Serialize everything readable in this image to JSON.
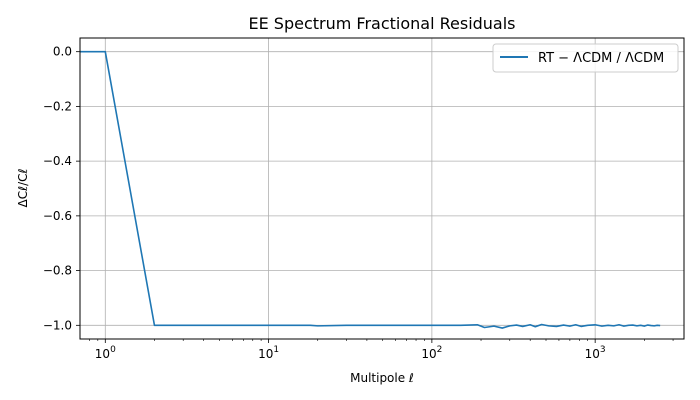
{
  "chart_data": {
    "type": "line",
    "title": "EE Spectrum Fractional Residuals",
    "xlabel": "Multipole ℓ",
    "ylabel": "ΔCℓ/Cℓ",
    "xscale": "log",
    "xlim": [
      0.7,
      3500
    ],
    "ylim": [
      -1.05,
      0.05
    ],
    "grid": true,
    "legend_position": "top-right",
    "x_ticks": [
      {
        "value": 1,
        "base": "10",
        "exp": "0"
      },
      {
        "value": 10,
        "base": "10",
        "exp": "1"
      },
      {
        "value": 100,
        "base": "10",
        "exp": "2"
      },
      {
        "value": 1000,
        "base": "10",
        "exp": "3"
      }
    ],
    "y_ticks": [
      {
        "value": 0.0,
        "label": "0.0"
      },
      {
        "value": -0.2,
        "label": "−0.2"
      },
      {
        "value": -0.4,
        "label": "−0.4"
      },
      {
        "value": -0.6,
        "label": "−0.6"
      },
      {
        "value": -0.8,
        "label": "−0.8"
      },
      {
        "value": -1.0,
        "label": "−1.0"
      }
    ],
    "series": [
      {
        "name": "RT − ΛCDM / ΛCDM",
        "color": "#1f77b4",
        "x": [
          0.7,
          1,
          2,
          3,
          5,
          10,
          18,
          20,
          30,
          50,
          100,
          150,
          190,
          210,
          240,
          270,
          300,
          330,
          360,
          400,
          430,
          470,
          520,
          580,
          640,
          700,
          760,
          820,
          900,
          1000,
          1100,
          1200,
          1300,
          1400,
          1500,
          1600,
          1700,
          1800,
          1900,
          2000,
          2100,
          2200,
          2300,
          2400,
          2500
        ],
        "y": [
          0,
          0,
          -1.0,
          -1.0,
          -1.0,
          -1.0,
          -1.0,
          -1.002,
          -1.0,
          -1.0,
          -1.0,
          -1.0,
          -0.998,
          -1.008,
          -1.003,
          -1.01,
          -1.002,
          -0.999,
          -1.004,
          -0.998,
          -1.005,
          -0.997,
          -1.002,
          -1.004,
          -0.999,
          -1.003,
          -0.998,
          -1.004,
          -1.0,
          -0.998,
          -1.003,
          -1.0,
          -1.002,
          -0.998,
          -1.003,
          -1.0,
          -0.999,
          -1.002,
          -1.0,
          -1.003,
          -0.999,
          -1.001,
          -1.002,
          -1.0,
          -1.001
        ]
      }
    ]
  }
}
